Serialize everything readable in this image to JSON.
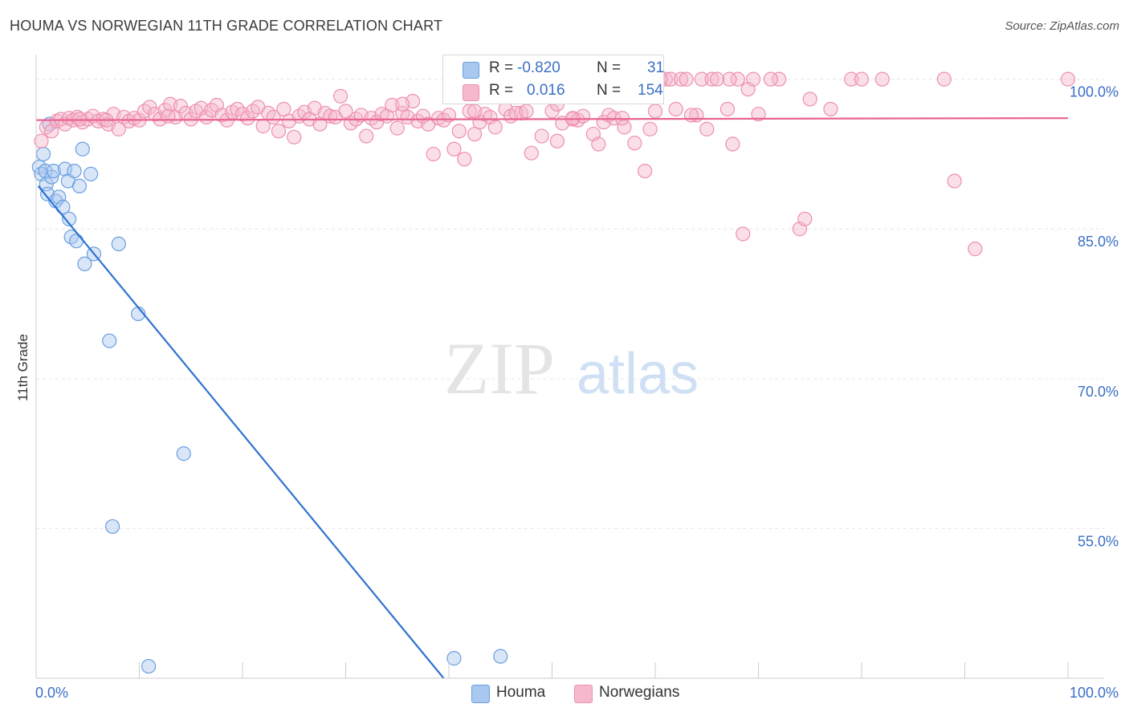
{
  "header": {
    "title": "HOUMA VS NORWEGIAN 11TH GRADE CORRELATION CHART",
    "source": "Source: ZipAtlas.com"
  },
  "watermark": {
    "zip": "ZIP",
    "atlas": "atlas"
  },
  "legend": {
    "rows": [
      {
        "r_label": "R =",
        "r_value": "-0.820",
        "n_label": "N =",
        "n_value": "31",
        "color": "#a8c8f0"
      },
      {
        "r_label": "R =",
        "r_value": "0.016",
        "n_label": "N =",
        "n_value": "154",
        "color": "#f5b8cc"
      }
    ]
  },
  "chart_data": {
    "type": "scatter",
    "title": "HOUMA VS NORWEGIAN 11TH GRADE CORRELATION CHART",
    "xlabel": "",
    "ylabel": "11th Grade",
    "xlim": [
      0,
      100
    ],
    "ylim": [
      40,
      101.5
    ],
    "x_tick_labels": [
      "0.0%",
      "100.0%"
    ],
    "y_ticks": [
      {
        "value": 100,
        "label": "100.0%"
      },
      {
        "value": 85,
        "label": "85.0%"
      },
      {
        "value": 70,
        "label": "70.0%"
      },
      {
        "value": 55,
        "label": "55.0%"
      }
    ],
    "grid": true,
    "legend_position": "top-center",
    "series": [
      {
        "name": "Houma",
        "color": "#a8c8f0",
        "stroke": "#6a9ee0",
        "line_color": "#2f73d2",
        "trend": {
          "x0": 0.2,
          "y0": 89.3,
          "x1": 39.5,
          "y1": 40
        },
        "points": [
          [
            0.3,
            91.2
          ],
          [
            0.5,
            90.5
          ],
          [
            0.7,
            92.5
          ],
          [
            0.9,
            90.8
          ],
          [
            1.0,
            89.5
          ],
          [
            1.1,
            88.5
          ],
          [
            1.3,
            95.5
          ],
          [
            1.5,
            90.2
          ],
          [
            1.7,
            90.8
          ],
          [
            1.9,
            87.8
          ],
          [
            2.2,
            88.2
          ],
          [
            2.6,
            87.2
          ],
          [
            2.8,
            91.0
          ],
          [
            3.1,
            89.8
          ],
          [
            3.2,
            86.0
          ],
          [
            3.4,
            84.2
          ],
          [
            3.7,
            90.8
          ],
          [
            3.9,
            83.8
          ],
          [
            4.2,
            89.3
          ],
          [
            4.5,
            93.0
          ],
          [
            4.7,
            81.5
          ],
          [
            5.3,
            90.5
          ],
          [
            5.6,
            82.5
          ],
          [
            7.1,
            73.8
          ],
          [
            7.4,
            55.2
          ],
          [
            8.0,
            83.5
          ],
          [
            9.9,
            76.5
          ],
          [
            10.9,
            41.2
          ],
          [
            14.3,
            62.5
          ],
          [
            40.5,
            42.0
          ],
          [
            45.0,
            42.2
          ]
        ]
      },
      {
        "name": "Norwegians",
        "color": "#f5b8cc",
        "stroke": "#ee8fb0",
        "line_color": "#e8648f",
        "trend": {
          "x0": 0,
          "y0": 95.9,
          "x1": 100,
          "y1": 96.1
        },
        "points": [
          [
            0.5,
            93.8
          ],
          [
            1.0,
            95.2
          ],
          [
            1.5,
            94.8
          ],
          [
            2.0,
            95.8
          ],
          [
            2.4,
            96.0
          ],
          [
            2.8,
            95.5
          ],
          [
            3.2,
            96.1
          ],
          [
            3.6,
            95.9
          ],
          [
            4.0,
            96.2
          ],
          [
            4.5,
            95.7
          ],
          [
            5.0,
            96.0
          ],
          [
            5.5,
            96.3
          ],
          [
            6.0,
            95.8
          ],
          [
            6.5,
            96.0
          ],
          [
            7.0,
            95.5
          ],
          [
            7.5,
            96.5
          ],
          [
            8.0,
            95.0
          ],
          [
            8.5,
            96.2
          ],
          [
            9.0,
            95.8
          ],
          [
            9.5,
            96.1
          ],
          [
            10.0,
            95.9
          ],
          [
            10.5,
            96.8
          ],
          [
            11.0,
            97.2
          ],
          [
            11.5,
            96.5
          ],
          [
            12.0,
            96.0
          ],
          [
            12.5,
            96.9
          ],
          [
            13.0,
            97.5
          ],
          [
            13.5,
            96.2
          ],
          [
            14.0,
            97.3
          ],
          [
            14.5,
            96.6
          ],
          [
            15.0,
            96.0
          ],
          [
            15.5,
            96.8
          ],
          [
            16.0,
            97.1
          ],
          [
            16.5,
            96.2
          ],
          [
            17.0,
            96.9
          ],
          [
            17.5,
            97.4
          ],
          [
            18.0,
            96.4
          ],
          [
            18.5,
            95.9
          ],
          [
            19.0,
            96.7
          ],
          [
            19.5,
            97.0
          ],
          [
            20.0,
            96.5
          ],
          [
            20.5,
            96.1
          ],
          [
            21.0,
            96.8
          ],
          [
            21.5,
            97.2
          ],
          [
            22.0,
            95.3
          ],
          [
            22.5,
            96.6
          ],
          [
            23.0,
            96.2
          ],
          [
            23.5,
            94.8
          ],
          [
            24.0,
            97.0
          ],
          [
            24.5,
            95.8
          ],
          [
            25.0,
            94.2
          ],
          [
            25.5,
            96.3
          ],
          [
            26.0,
            96.7
          ],
          [
            26.5,
            96.0
          ],
          [
            27.0,
            97.1
          ],
          [
            27.5,
            95.5
          ],
          [
            28.0,
            96.6
          ],
          [
            28.5,
            96.3
          ],
          [
            29.0,
            96.2
          ],
          [
            29.5,
            98.3
          ],
          [
            30.0,
            96.8
          ],
          [
            30.5,
            95.6
          ],
          [
            31.0,
            96.0
          ],
          [
            31.5,
            96.4
          ],
          [
            32.0,
            94.3
          ],
          [
            32.5,
            96.1
          ],
          [
            33.0,
            95.7
          ],
          [
            33.5,
            96.5
          ],
          [
            34.0,
            96.3
          ],
          [
            34.5,
            97.4
          ],
          [
            35.0,
            95.1
          ],
          [
            35.5,
            96.6
          ],
          [
            36.0,
            96.2
          ],
          [
            36.5,
            97.8
          ],
          [
            37.0,
            95.8
          ],
          [
            37.5,
            96.3
          ],
          [
            38.0,
            95.5
          ],
          [
            38.5,
            92.5
          ],
          [
            39.0,
            96.1
          ],
          [
            39.5,
            95.9
          ],
          [
            40.0,
            96.4
          ],
          [
            40.5,
            93.0
          ],
          [
            41.0,
            94.8
          ],
          [
            41.5,
            92.0
          ],
          [
            42.0,
            96.8
          ],
          [
            42.5,
            94.5
          ],
          [
            43.0,
            95.7
          ],
          [
            43.5,
            96.5
          ],
          [
            44.0,
            96.2
          ],
          [
            44.5,
            95.2
          ],
          [
            45.5,
            97.0
          ],
          [
            46.0,
            96.3
          ],
          [
            47.0,
            96.6
          ],
          [
            48.0,
            92.6
          ],
          [
            49.0,
            94.3
          ],
          [
            50.0,
            96.8
          ],
          [
            50.5,
            93.8
          ],
          [
            51.0,
            95.6
          ],
          [
            52.0,
            96.0
          ],
          [
            52.5,
            95.9
          ],
          [
            53.0,
            96.3
          ],
          [
            54.0,
            94.5
          ],
          [
            54.5,
            93.5
          ],
          [
            55.0,
            95.7
          ],
          [
            55.5,
            96.4
          ],
          [
            56.0,
            96.1
          ],
          [
            57.0,
            95.2
          ],
          [
            58.0,
            93.6
          ],
          [
            59.0,
            90.8
          ],
          [
            59.5,
            95.0
          ],
          [
            60.0,
            96.8
          ],
          [
            61.0,
            100
          ],
          [
            61.5,
            100
          ],
          [
            62.0,
            97.0
          ],
          [
            62.5,
            100
          ],
          [
            63.0,
            100
          ],
          [
            64.0,
            96.4
          ],
          [
            64.5,
            100
          ],
          [
            65.0,
            95.0
          ],
          [
            65.5,
            100
          ],
          [
            66.0,
            100
          ],
          [
            67.0,
            97.0
          ],
          [
            67.5,
            93.5
          ],
          [
            68.0,
            100
          ],
          [
            68.5,
            84.5
          ],
          [
            69.0,
            99.0
          ],
          [
            69.5,
            100
          ],
          [
            70.0,
            96.5
          ],
          [
            72.0,
            100
          ],
          [
            74.0,
            85.0
          ],
          [
            74.5,
            86.0
          ],
          [
            75.0,
            98.0
          ],
          [
            77.0,
            97.0
          ],
          [
            79.0,
            100
          ],
          [
            80.0,
            100
          ],
          [
            82.0,
            100
          ],
          [
            88.0,
            100
          ],
          [
            89.0,
            89.8
          ],
          [
            91.0,
            83.0
          ],
          [
            100.0,
            100
          ],
          [
            35.5,
            97.5
          ],
          [
            42.5,
            96.8
          ],
          [
            46.5,
            96.6
          ],
          [
            50.5,
            97.5
          ],
          [
            47.5,
            96.8
          ],
          [
            52.0,
            96.1
          ],
          [
            60.5,
            100
          ],
          [
            67.2,
            100
          ],
          [
            71.2,
            100
          ],
          [
            63.5,
            96.4
          ],
          [
            56.8,
            96.1
          ],
          [
            12.8,
            96.3
          ],
          [
            6.8,
            95.9
          ],
          [
            4.2,
            96.0
          ]
        ]
      }
    ]
  },
  "bottom_legend": {
    "items": [
      {
        "label": "Houma",
        "color": "#a8c8f0"
      },
      {
        "label": "Norwegians",
        "color": "#f5b8cc"
      }
    ]
  }
}
